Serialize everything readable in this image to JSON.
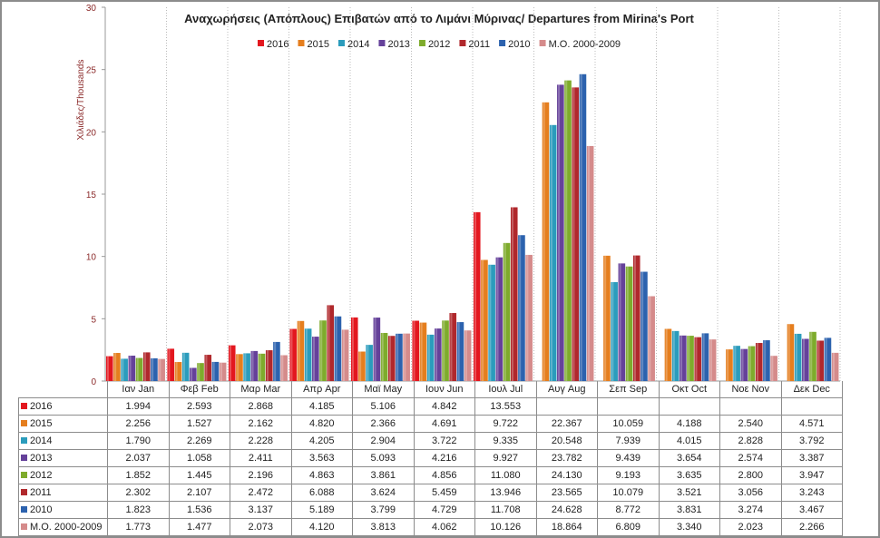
{
  "chart_data": {
    "type": "bar",
    "title": "Αναχωρήσεις (Απόπλους) Επιβατών από το Λιμάνι Μύρινας/ Departures from  Mirina's Port",
    "ylabel": "Χιλιάδες/Thousands",
    "xlabel": "",
    "ylim": [
      0,
      30
    ],
    "yticks": [
      "0",
      "5",
      "10",
      "15",
      "20",
      "25",
      "30"
    ],
    "legend_position": "top-center",
    "categories": [
      "Ιαν  Jan",
      "Φεβ  Feb",
      "Μαρ  Mar",
      "Απρ  Apr",
      "Μαϊ  May",
      "Ιουν  Jun",
      "Ιουλ  Jul",
      "Αυγ  Aug",
      "Σεπ  Sep",
      "Οκτ  Oct",
      "Νοε  Nov",
      "Δεκ  Dec"
    ],
    "series": [
      {
        "name": "2016",
        "color": "#e3171f",
        "values": [
          "1.994",
          "2.593",
          "2.868",
          "4.185",
          "5.106",
          "4.842",
          "13.553",
          "",
          "",
          "",
          "",
          ""
        ]
      },
      {
        "name": "2015",
        "color": "#e57e1e",
        "values": [
          "2.256",
          "1.527",
          "2.162",
          "4.820",
          "2.366",
          "4.691",
          "9.722",
          "22.367",
          "10.059",
          "4.188",
          "2.540",
          "4.571"
        ]
      },
      {
        "name": "2014",
        "color": "#2b9cbc",
        "values": [
          "1.790",
          "2.269",
          "2.228",
          "4.205",
          "2.904",
          "3.722",
          "9.335",
          "20.548",
          "7.939",
          "4.015",
          "2.828",
          "3.792"
        ]
      },
      {
        "name": "2013",
        "color": "#65419a",
        "values": [
          "2.037",
          "1.058",
          "2.411",
          "3.563",
          "5.093",
          "4.216",
          "9.927",
          "23.782",
          "9.439",
          "3.654",
          "2.574",
          "3.387"
        ]
      },
      {
        "name": "2012",
        "color": "#7eab2c",
        "values": [
          "1.852",
          "1.445",
          "2.196",
          "4.863",
          "3.861",
          "4.856",
          "11.080",
          "24.130",
          "9.193",
          "3.635",
          "2.800",
          "3.947"
        ]
      },
      {
        "name": "2011",
        "color": "#b0282c",
        "values": [
          "2.302",
          "2.107",
          "2.472",
          "6.088",
          "3.624",
          "5.459",
          "13.946",
          "23.565",
          "10.079",
          "3.521",
          "3.056",
          "3.243"
        ]
      },
      {
        "name": "2010",
        "color": "#2c62ae",
        "values": [
          "1.823",
          "1.536",
          "3.137",
          "5.189",
          "3.799",
          "4.729",
          "11.708",
          "24.628",
          "8.772",
          "3.831",
          "3.274",
          "3.467"
        ]
      },
      {
        "name": "Μ.Ο. 2000-2009",
        "color": "#d58b8b",
        "values": [
          "1.773",
          "1.477",
          "2.073",
          "4.120",
          "3.813",
          "4.062",
          "10.126",
          "18.864",
          "6.809",
          "3.340",
          "2.023",
          "2.266"
        ]
      }
    ]
  }
}
